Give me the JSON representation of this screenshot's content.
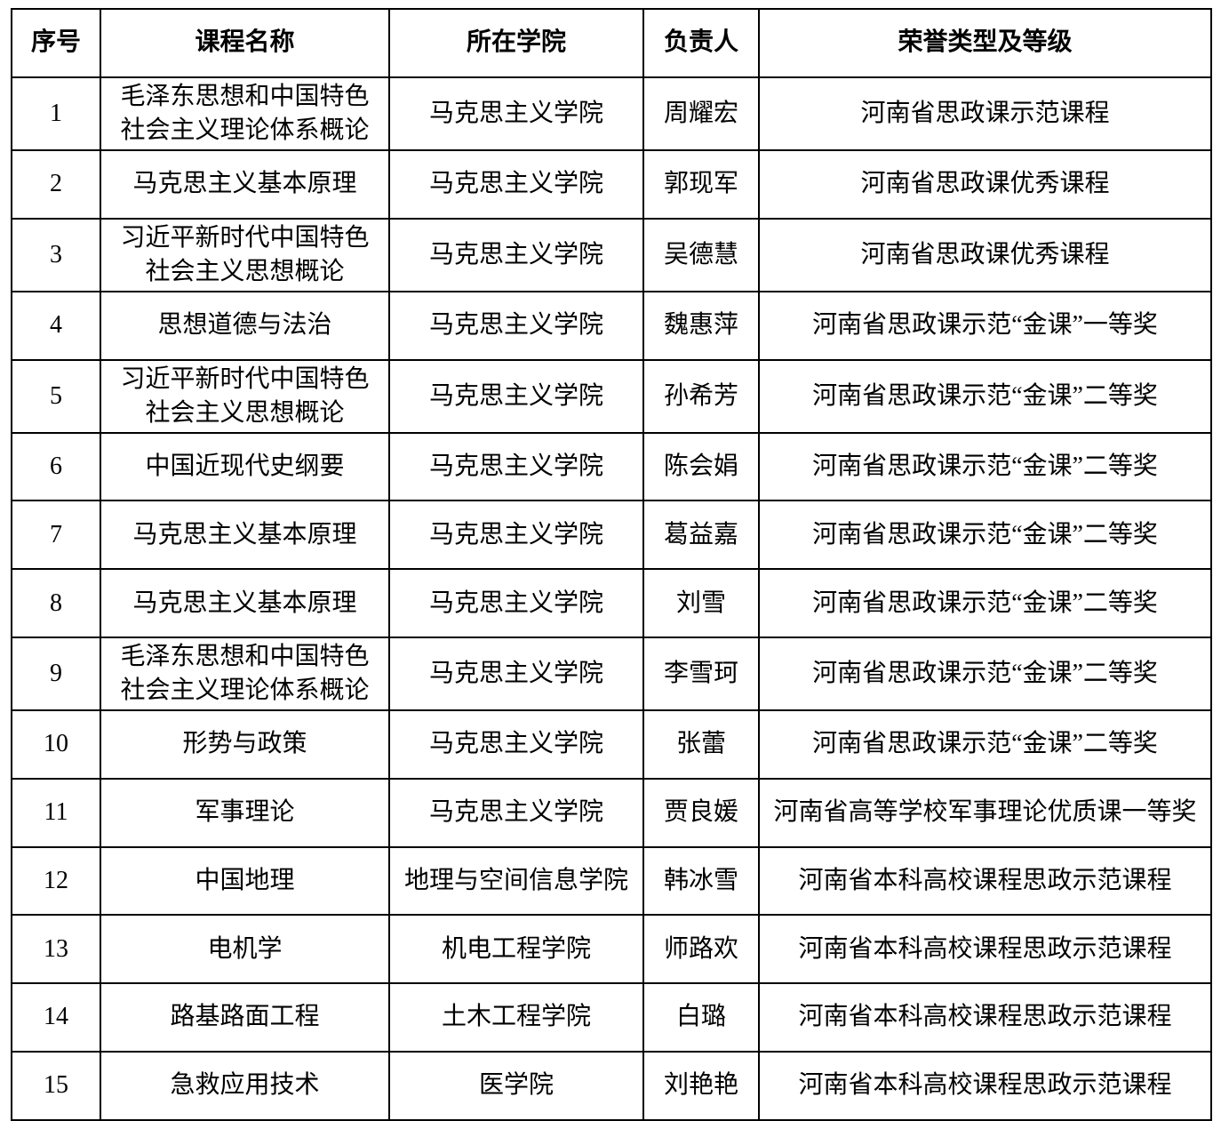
{
  "page": {
    "background_color": "#ffffff",
    "text_color": "#000000",
    "border_color": "#000000"
  },
  "table": {
    "columns": [
      {
        "key": "index",
        "label": "序号"
      },
      {
        "key": "course",
        "label": "课程名称"
      },
      {
        "key": "college",
        "label": "所在学院"
      },
      {
        "key": "leader",
        "label": "负责人"
      },
      {
        "key": "honor",
        "label": "荣誉类型及等级"
      }
    ],
    "rows": [
      [
        "1",
        "毛泽东思想和中国特色社会主义理论体系概论",
        "马克思主义学院",
        "周耀宏",
        "河南省思政课示范课程"
      ],
      [
        "2",
        "马克思主义基本原理",
        "马克思主义学院",
        "郭现军",
        "河南省思政课优秀课程"
      ],
      [
        "3",
        "习近平新时代中国特色社会主义思想概论",
        "马克思主义学院",
        "吴德慧",
        "河南省思政课优秀课程"
      ],
      [
        "4",
        "思想道德与法治",
        "马克思主义学院",
        "魏惠萍",
        "河南省思政课示范“金课”一等奖"
      ],
      [
        "5",
        "习近平新时代中国特色社会主义思想概论",
        "马克思主义学院",
        "孙希芳",
        "河南省思政课示范“金课”二等奖"
      ],
      [
        "6",
        "中国近现代史纲要",
        "马克思主义学院",
        "陈会娟",
        "河南省思政课示范“金课”二等奖"
      ],
      [
        "7",
        "马克思主义基本原理",
        "马克思主义学院",
        "葛益嘉",
        "河南省思政课示范“金课”二等奖"
      ],
      [
        "8",
        "马克思主义基本原理",
        "马克思主义学院",
        "刘雪",
        "河南省思政课示范“金课”二等奖"
      ],
      [
        "9",
        "毛泽东思想和中国特色社会主义理论体系概论",
        "马克思主义学院",
        "李雪珂",
        "河南省思政课示范“金课”二等奖"
      ],
      [
        "10",
        "形势与政策",
        "马克思主义学院",
        "张蕾",
        "河南省思政课示范“金课”二等奖"
      ],
      [
        "11",
        "军事理论",
        "马克思主义学院",
        "贾良媛",
        "河南省高等学校军事理论优质课一等奖"
      ],
      [
        "12",
        "中国地理",
        "地理与空间信息学院",
        "韩冰雪",
        "河南省本科高校课程思政示范课程"
      ],
      [
        "13",
        "电机学",
        "机电工程学院",
        "师路欢",
        "河南省本科高校课程思政示范课程"
      ],
      [
        "14",
        "路基路面工程",
        "土木工程学院",
        "白璐",
        "河南省本科高校课程思政示范课程"
      ],
      [
        "15",
        "急救应用技术",
        "医学院",
        "刘艳艳",
        "河南省本科高校课程思政示范课程"
      ]
    ]
  }
}
